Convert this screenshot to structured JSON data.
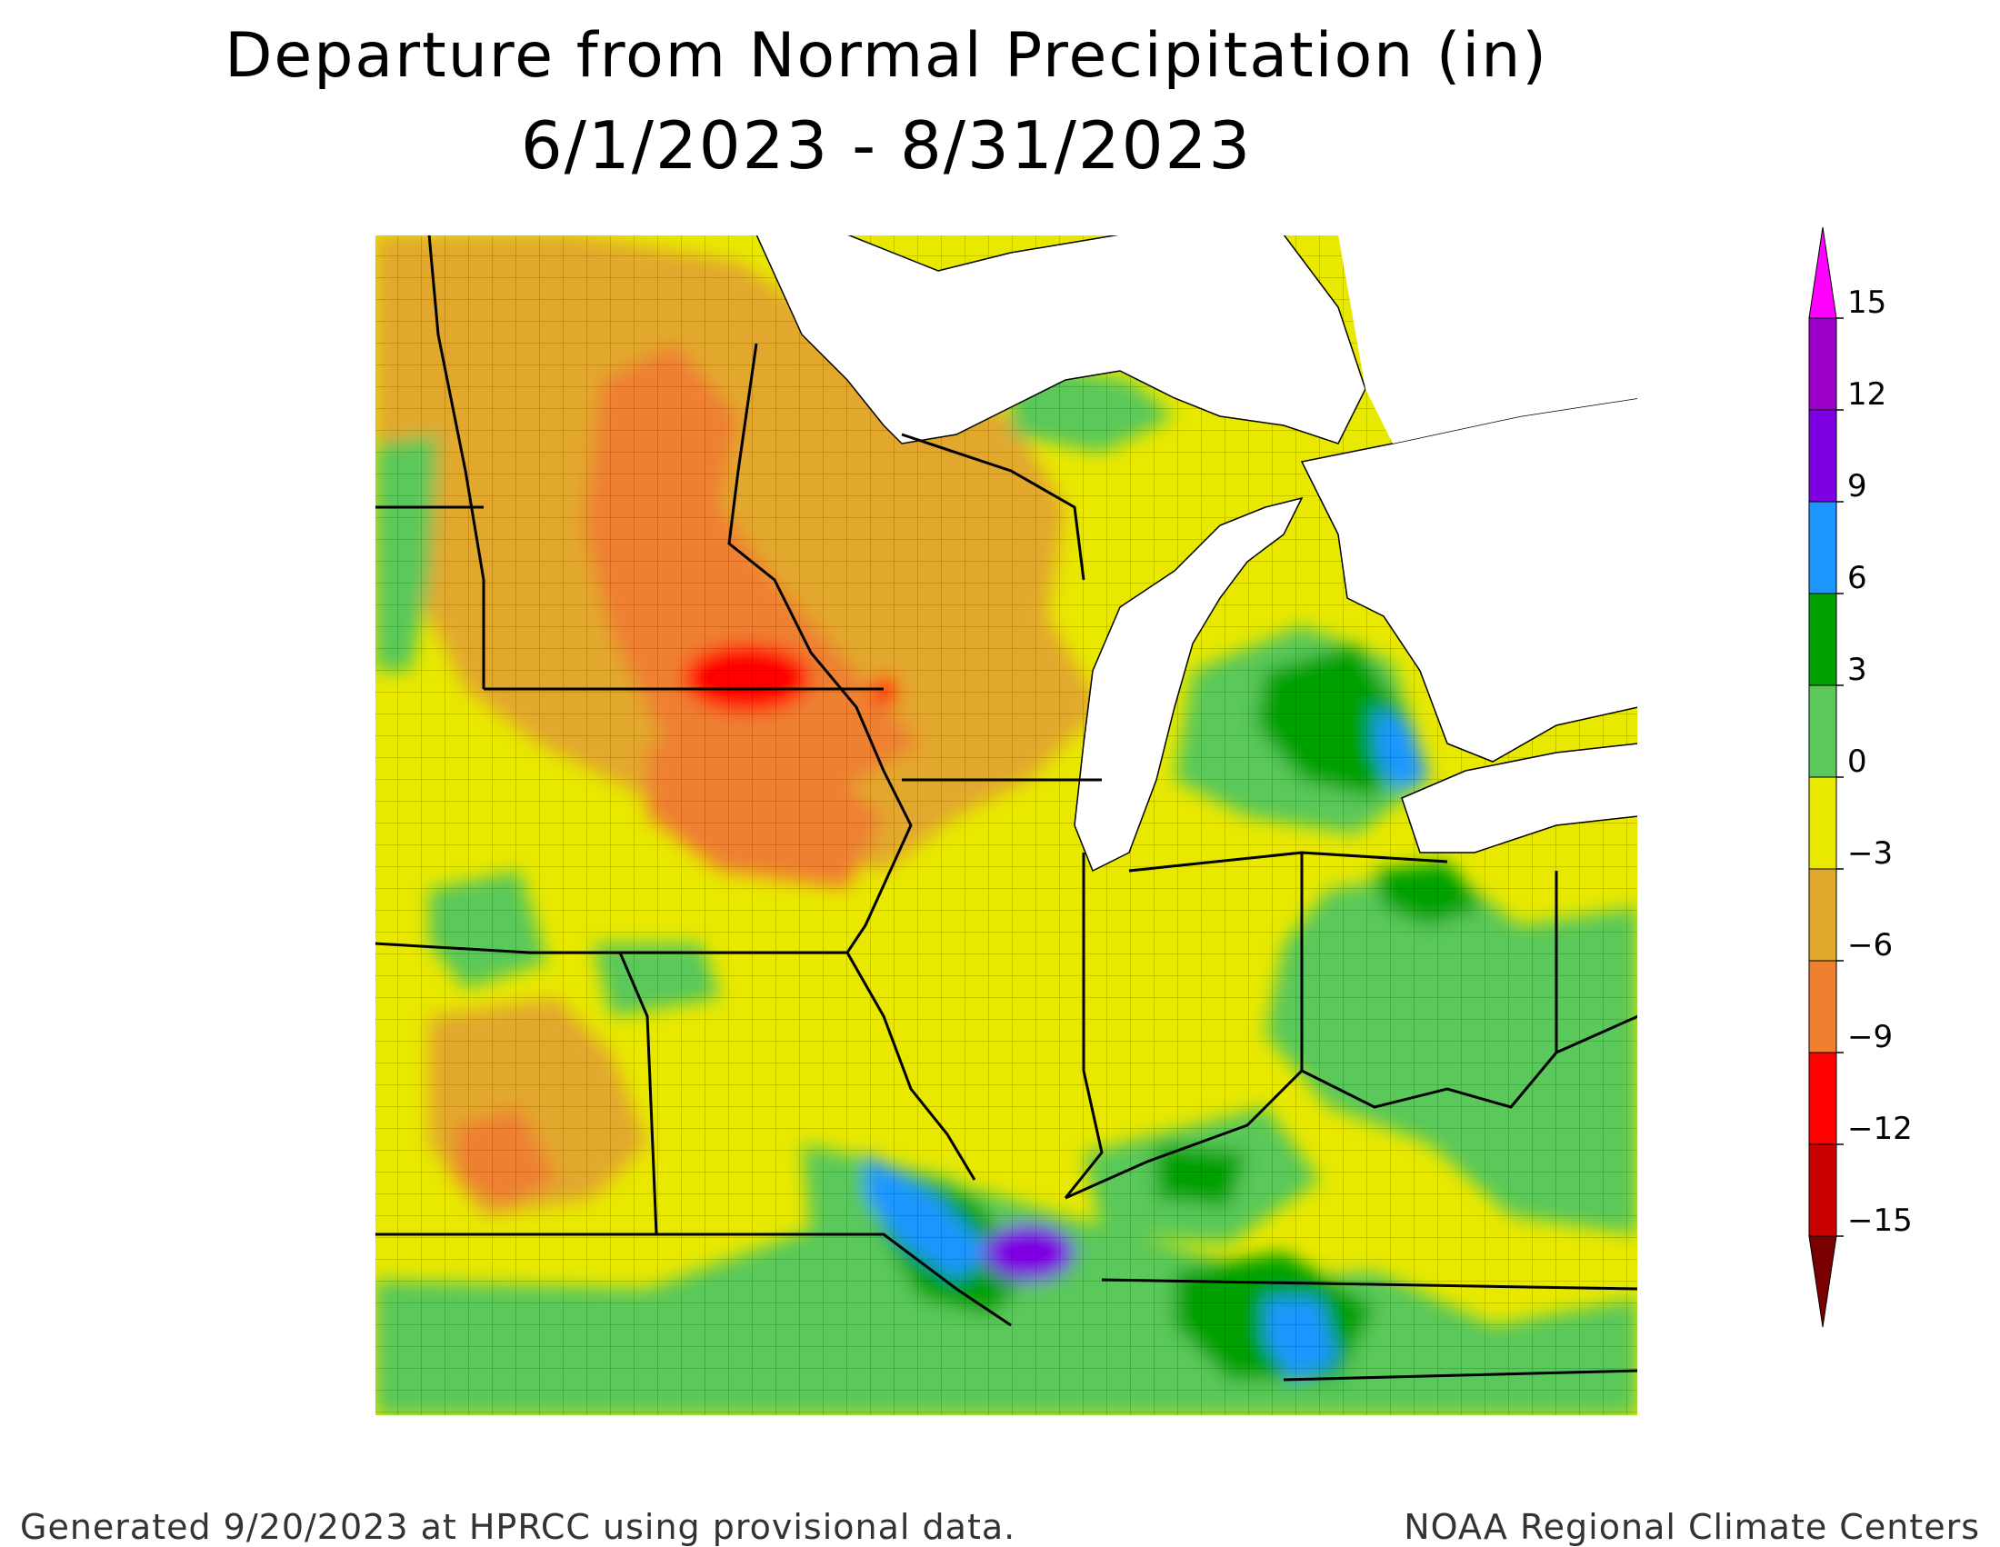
{
  "title_line1": "Departure from Normal Precipitation (in)",
  "title_line2": "6/1/2023 - 8/31/2023",
  "footer_left": "Generated 9/20/2023 at HPRCC using provisional data.",
  "footer_right": "NOAA Regional Climate Centers",
  "legend": {
    "labels": [
      "15",
      "12",
      "9",
      "6",
      "3",
      "0",
      "−3",
      "−6",
      "−9",
      "−12",
      "−15"
    ],
    "colors": [
      "#ff00ff",
      "#9c00c8",
      "#7e00e2",
      "#1e96ff",
      "#00a000",
      "#5ac85a",
      "#e8e800",
      "#e2a82e",
      "#ee8030",
      "#ff0000",
      "#c80000",
      "#7a0000"
    ]
  },
  "map": {
    "land_colors": {
      "orange_dry": "#e2a82e",
      "deep_orange": "#ee8030",
      "red": "#ff0000",
      "yellow": "#e8e800",
      "light_green": "#5ac85a",
      "green": "#00a000",
      "blue": "#1e96ff",
      "purple": "#7e00e2",
      "magenta": "#9c00c8",
      "water": "#ffffff"
    }
  }
}
